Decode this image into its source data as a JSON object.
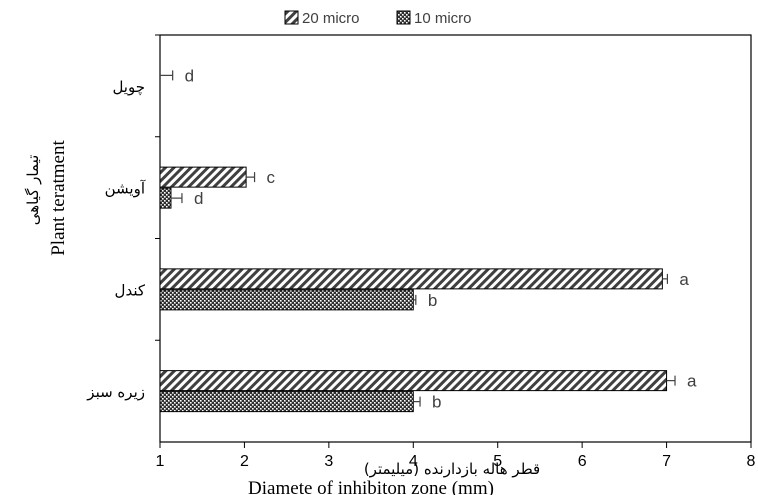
{
  "chart_data": {
    "type": "bar",
    "orientation": "horizontal",
    "categories": [
      "چویل",
      "آویشن",
      "کندل",
      "زیره سبز"
    ],
    "series": [
      {
        "name": "20 micro",
        "pattern": "diagonal-hatch",
        "values": [
          1.0,
          2.02,
          6.95,
          7.0
        ],
        "errors": [
          0.15,
          0.1,
          0.06,
          0.1
        ],
        "labels": [
          "d",
          "c",
          "a",
          "a"
        ]
      },
      {
        "name": "10 micro",
        "pattern": "dotted",
        "values": [
          1.0,
          1.13,
          4.0,
          4.0
        ],
        "errors": [
          0.0,
          0.13,
          0.03,
          0.08
        ],
        "labels": [
          "",
          "d",
          "b",
          "b"
        ]
      }
    ],
    "xlim": [
      1,
      8
    ],
    "xticks": [
      1,
      2,
      3,
      4,
      5,
      6,
      7,
      8
    ],
    "xlabel_fa": "قطر هاله بازدارنده (میلیمتر)",
    "xlabel_en": "Diamete of inhibiton zone (mm)",
    "ylabel_fa": "تیمار گیاهی",
    "ylabel_en": "Plant teratment",
    "legend_position": "top-center",
    "grid": false
  }
}
